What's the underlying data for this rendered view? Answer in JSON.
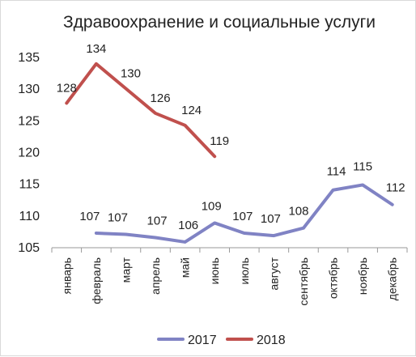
{
  "chart_data": {
    "type": "line",
    "title": "Здравоохранение и социальные услуги",
    "categories": [
      "январь",
      "февраль",
      "март",
      "апрель",
      "май",
      "июнь",
      "июль",
      "август",
      "сентябрь",
      "октябрь",
      "ноябрь",
      "декабрь"
    ],
    "ylim": [
      105,
      135
    ],
    "yticks": [
      105,
      110,
      115,
      120,
      125,
      130,
      135
    ],
    "grid": false,
    "legend_position": "bottom",
    "series": [
      {
        "name": "2017",
        "color": "#8083c4",
        "values": [
          null,
          107.3,
          107.1,
          106.6,
          105.9,
          108.9,
          107.3,
          106.9,
          108.1,
          114.1,
          114.9,
          111.8
        ],
        "labels": [
          "",
          "107",
          "107",
          "107",
          "106",
          "109",
          "107",
          "107",
          "108",
          "114",
          "115",
          "112"
        ]
      },
      {
        "name": "2018",
        "color": "#c0504d",
        "values": [
          127.8,
          134.0,
          130.1,
          126.2,
          124.3,
          119.4,
          null,
          null,
          null,
          null,
          null,
          null
        ],
        "labels": [
          "128",
          "134",
          "130",
          "126",
          "124",
          "119",
          "",
          "",
          "",
          "",
          "",
          ""
        ]
      }
    ]
  }
}
